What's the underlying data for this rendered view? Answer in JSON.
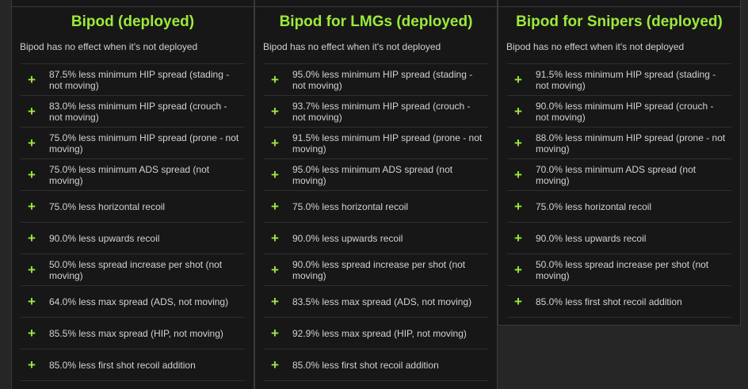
{
  "colors": {
    "accent": "#9bea3b",
    "panel_bg": "#171717",
    "page_bg": "#262626",
    "text": "#d2d2d2",
    "border": "#3a3a3a"
  },
  "columns": [
    {
      "title": "Bipod (deployed)",
      "note": "Bipod has no effect when it's not deployed",
      "rows": [
        {
          "icon": "plus-icon",
          "text": "87.5% less minimum HIP spread (stading - not moving)"
        },
        {
          "icon": "plus-icon",
          "text": "83.0% less minimum HIP spread (crouch - not moving)"
        },
        {
          "icon": "plus-icon",
          "text": "75.0% less minimum HIP spread (prone - not moving)"
        },
        {
          "icon": "plus-icon",
          "text": "75.0% less minimum ADS spread (not moving)"
        },
        {
          "icon": "plus-icon",
          "text": "75.0% less horizontal recoil"
        },
        {
          "icon": "plus-icon",
          "text": "90.0% less upwards recoil"
        },
        {
          "icon": "plus-icon",
          "text": "50.0% less spread increase per shot (not moving)"
        },
        {
          "icon": "plus-icon",
          "text": "64.0% less max spread (ADS, not moving)"
        },
        {
          "icon": "plus-icon",
          "text": "85.5% less max spread (HIP, not moving)"
        },
        {
          "icon": "plus-icon",
          "text": "85.0% less first shot recoil addition"
        }
      ]
    },
    {
      "title": "Bipod for LMGs (deployed)",
      "note": "Bipod has no effect when it's not deployed",
      "rows": [
        {
          "icon": "plus-icon",
          "text": "95.0% less minimum HIP spread (stading - not moving)"
        },
        {
          "icon": "plus-icon",
          "text": "93.7% less minimum HIP spread (crouch - not moving)"
        },
        {
          "icon": "plus-icon",
          "text": "91.5% less minimum HIP spread (prone - not moving)"
        },
        {
          "icon": "plus-icon",
          "text": "95.0% less minimum ADS spread (not moving)"
        },
        {
          "icon": "plus-icon",
          "text": "75.0% less horizontal recoil"
        },
        {
          "icon": "plus-icon",
          "text": "90.0% less upwards recoil"
        },
        {
          "icon": "plus-icon",
          "text": "90.0% less spread increase per shot (not moving)"
        },
        {
          "icon": "plus-icon",
          "text": "83.5% less max spread (ADS, not moving)"
        },
        {
          "icon": "plus-icon",
          "text": "92.9% less max spread (HIP, not moving)"
        },
        {
          "icon": "plus-icon",
          "text": "85.0% less first shot recoil addition"
        }
      ]
    },
    {
      "title": "Bipod for Snipers (deployed)",
      "note": "Bipod has no effect when it's not deployed",
      "rows": [
        {
          "icon": "plus-icon",
          "text": "91.5% less minimum HIP spread (stading - not moving)"
        },
        {
          "icon": "plus-icon",
          "text": "90.0% less minimum HIP spread (crouch - not moving)"
        },
        {
          "icon": "plus-icon",
          "text": "88.0% less minimum HIP spread (prone - not moving)"
        },
        {
          "icon": "plus-icon",
          "text": "70.0% less minimum ADS spread (not moving)"
        },
        {
          "icon": "plus-icon",
          "text": "75.0% less horizontal recoil"
        },
        {
          "icon": "plus-icon",
          "text": "90.0% less upwards recoil"
        },
        {
          "icon": "plus-icon",
          "text": "50.0% less spread increase per shot (not moving)"
        },
        {
          "icon": "plus-icon",
          "text": "85.0% less first shot recoil addition"
        }
      ]
    }
  ]
}
